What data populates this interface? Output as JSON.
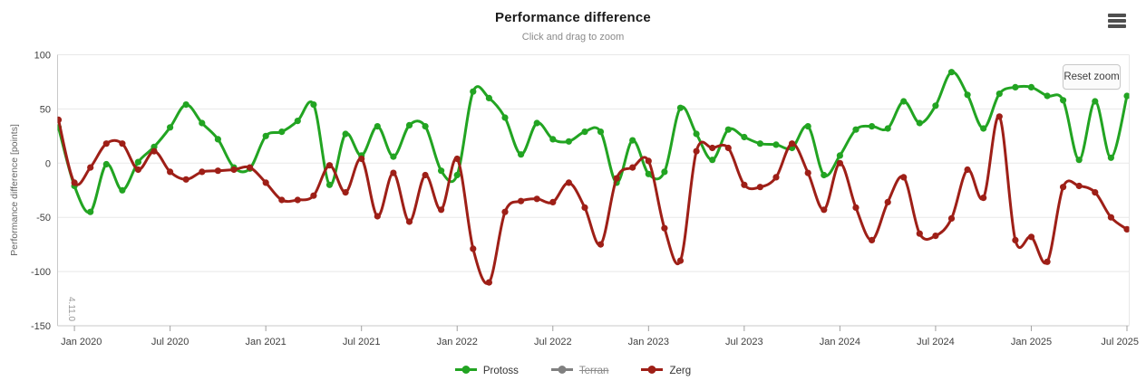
{
  "header": {
    "title": "Performance difference",
    "subtitle": "Click and drag to zoom"
  },
  "toolbar": {
    "reset_zoom_label": "Reset zoom",
    "menu_icon": "hamburger-icon"
  },
  "watermark": "4.11.0",
  "palette": {
    "grid": "#e8e8e8",
    "axis_line": "#c9c9c9",
    "tick": "#a0a0a0",
    "axis_label": "#3f3f3f",
    "axis_title": "#666666",
    "watermark": "#999999"
  },
  "chart_data": {
    "type": "line",
    "title": "Performance difference",
    "subtitle": "Click and drag to zoom",
    "xlabel": "",
    "ylabel": "Performance difference [points]",
    "ylim": [
      -150,
      100
    ],
    "y_ticks": [
      100,
      50,
      0,
      -50,
      -100,
      -150
    ],
    "grid": true,
    "legend_position": "bottom",
    "marker": "circle",
    "x_range": {
      "start": "Dec 2019",
      "end": "Jul 2025",
      "interval": "month",
      "points": 68
    },
    "x_ticks": [
      {
        "label": "Jan 2020",
        "i": 1
      },
      {
        "label": "Jul 2020",
        "i": 7
      },
      {
        "label": "Jan 2021",
        "i": 13
      },
      {
        "label": "Jul 2021",
        "i": 19
      },
      {
        "label": "Jan 2022",
        "i": 25
      },
      {
        "label": "Jul 2022",
        "i": 31
      },
      {
        "label": "Jan 2023",
        "i": 37
      },
      {
        "label": "Jul 2023",
        "i": 43
      },
      {
        "label": "Jan 2024",
        "i": 49
      },
      {
        "label": "Jul 2024",
        "i": 55
      },
      {
        "label": "Jan 2025",
        "i": 61
      },
      {
        "label": "Jul 2025",
        "i": 67
      }
    ],
    "series": [
      {
        "name": "Protoss",
        "color": "#22a422",
        "visible": true,
        "values": [
          33,
          -21,
          -45,
          -1,
          -25,
          1,
          15,
          33,
          54,
          37,
          22,
          -4,
          -5,
          25,
          29,
          39,
          54,
          -20,
          27,
          7,
          34,
          6,
          35,
          34,
          -7,
          -11,
          66,
          60,
          42,
          8,
          37,
          22,
          20,
          29,
          29,
          -18,
          21,
          -10,
          -8,
          51,
          27,
          3,
          31,
          24,
          18,
          17,
          14,
          34,
          -11,
          7,
          31,
          34,
          32,
          57,
          37,
          53,
          84,
          63,
          32,
          64,
          70,
          70,
          62,
          58,
          3,
          57,
          5,
          62
        ]
      },
      {
        "name": "Terran",
        "color": "#808080",
        "visible": false,
        "values": []
      },
      {
        "name": "Zerg",
        "color": "#9e1f17",
        "visible": true,
        "values": [
          40,
          -18,
          -4,
          18,
          18,
          -6,
          11,
          -8,
          -15,
          -8,
          -7,
          -6,
          -4,
          -18,
          -34,
          -34,
          -30,
          -2,
          -27,
          4,
          -49,
          -9,
          -54,
          -11,
          -43,
          4,
          -79,
          -110,
          -45,
          -35,
          -33,
          -36,
          -18,
          -41,
          -75,
          -14,
          -4,
          2,
          -60,
          -90,
          11,
          14,
          14,
          -20,
          -22,
          -13,
          18,
          -9,
          -43,
          0,
          -41,
          -71,
          -36,
          -13,
          -65,
          -67,
          -51,
          -6,
          -32,
          43,
          -71,
          -68,
          -91,
          -22,
          -21,
          -27,
          -50,
          -61
        ]
      }
    ]
  }
}
